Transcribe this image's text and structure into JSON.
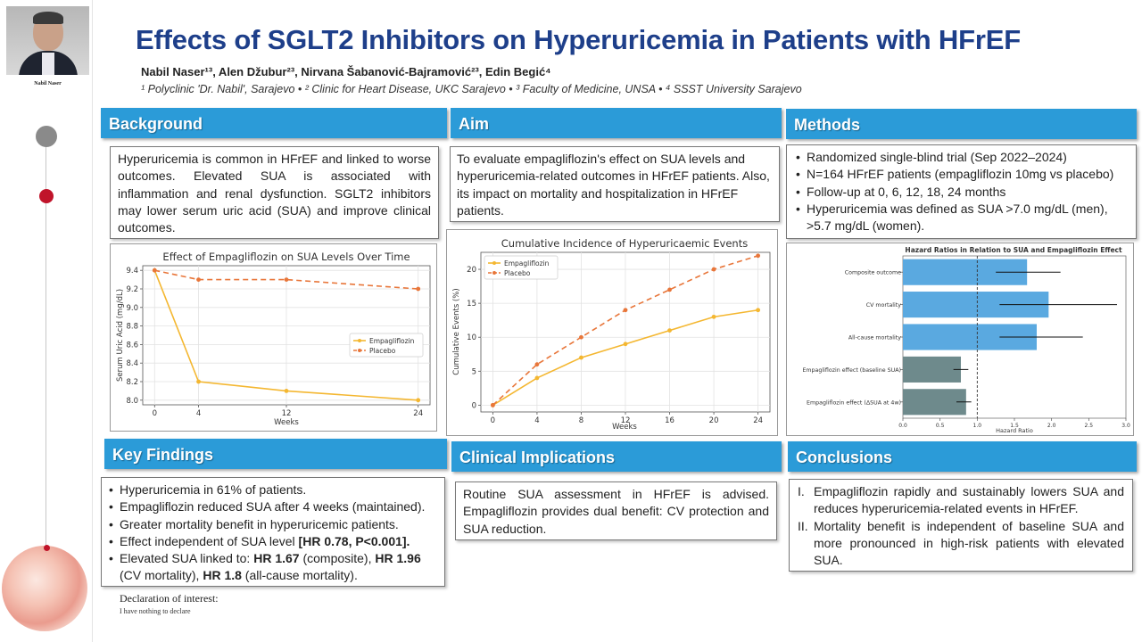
{
  "poster": {
    "title": "Effects of SGLT2 Inhibitors on Hyperuricemia in Patients with HFrEF",
    "authors": "Nabil Naser¹³, Alen Džubur²³, Nirvana Šabanović-Bajramović²³, Edin Begić⁴",
    "affiliations": "¹ Polyclinic 'Dr. Nabil', Sarajevo  •  ² Clinic for Heart Disease, UKC Sarajevo  •  ³ Faculty of Medicine, UNSA  •  ⁴ SSST University Sarajevo",
    "presenter_name": "Nabil Naser"
  },
  "background": {
    "heading": "Background",
    "text": "Hyperuricemia is common in HFrEF and linked to worse outcomes. Elevated SUA is associated with inflammation and renal dysfunction. SGLT2 inhibitors may lower serum uric acid (SUA) and improve clinical outcomes."
  },
  "aim": {
    "heading": "Aim",
    "text": "To evaluate empagliflozin's effect on SUA levels and hyperuricemia-related outcomes in HFrEF patients. Also, its impact on mortality and hospitalization in HFrEF patients."
  },
  "methods": {
    "heading": "Methods",
    "items": [
      "Randomized single-blind trial (Sep 2022–2024)",
      "N=164 HFrEF patients (empagliflozin 10mg vs placebo)",
      "Follow-up at 0, 6, 12, 18, 24 months",
      "Hyperuricemia was defined as SUA >7.0 mg/dL (men), >5.7 mg/dL (women)."
    ]
  },
  "key_findings": {
    "heading": "Key Findings",
    "items": [
      {
        "text": "Hyperuricemia in 61% of patients."
      },
      {
        "text": "Empagliflozin reduced SUA after 4 weeks (maintained)."
      },
      {
        "text": "Greater mortality benefit in hyperuricemic patients."
      },
      {
        "pre": "Effect independent of SUA level ",
        "bold": "[HR 0.78, P<0.001]."
      },
      {
        "pre": "Elevated SUA linked to: ",
        "b1": "HR 1.67",
        "t1": " (composite), ",
        "b2": "HR 1.96",
        "t2": " (CV mortality), ",
        "b3": "HR 1.8",
        "t3": " (all-cause mortality)."
      }
    ]
  },
  "clinical_implications": {
    "heading": "Clinical Implications",
    "text": "Routine SUA assessment in HFrEF is advised. Empagliflozin provides dual benefit: CV protection and SUA reduction."
  },
  "conclusions": {
    "heading": "Conclusions",
    "items": [
      {
        "num": "I.",
        "text": "Empagliflozin rapidly and sustainably lowers SUA and reduces hyperuricemia-related events in HFrEF."
      },
      {
        "num": "II.",
        "text": "Mortality benefit is independent of baseline SUA and more pronounced in high-risk patients with elevated SUA."
      }
    ]
  },
  "declaration": {
    "heading": "Declaration of interest:",
    "text": "I have nothing to declare"
  },
  "colors": {
    "header_blue": "#2b9bd8",
    "title_blue": "#1e3f8a",
    "empagliflozin": "#f4b731",
    "placebo": "#e8763a",
    "bar_blue": "#5aa9e0",
    "bar_grey": "#6e8a8c"
  },
  "chart_data": [
    {
      "type": "line",
      "title": "Effect of Empagliflozin on SUA Levels Over Time",
      "xlabel": "Weeks",
      "ylabel": "Serum Uric Acid (mg/dL)",
      "x": [
        0,
        4,
        12,
        24
      ],
      "xticks": [
        0,
        4,
        12,
        24
      ],
      "ylim": [
        7.95,
        9.45
      ],
      "yticks": [
        8.0,
        8.2,
        8.4,
        8.6,
        8.8,
        9.0,
        9.2,
        9.4
      ],
      "grid": true,
      "legend": "center-right",
      "series": [
        {
          "name": "Empagliflozin",
          "values": [
            9.4,
            8.2,
            8.1,
            8.0
          ],
          "style": "solid",
          "color": "#f4b731"
        },
        {
          "name": "Placebo",
          "values": [
            9.4,
            9.3,
            9.3,
            9.2
          ],
          "style": "dashed",
          "color": "#e8763a"
        }
      ]
    },
    {
      "type": "line",
      "title": "Cumulative Incidence of Hyperuricaemic Events",
      "xlabel": "Weeks",
      "ylabel": "Cumulative Events (%)",
      "x": [
        0,
        4,
        8,
        12,
        16,
        20,
        24
      ],
      "xticks": [
        0,
        4,
        8,
        12,
        16,
        20,
        24
      ],
      "ylim": [
        -1,
        22.5
      ],
      "yticks": [
        0,
        5,
        10,
        15,
        20
      ],
      "grid": true,
      "legend": "top-left",
      "series": [
        {
          "name": "Empagliflozin",
          "values": [
            0,
            4,
            7,
            9,
            11,
            13,
            14
          ],
          "style": "solid",
          "color": "#f4b731"
        },
        {
          "name": "Placebo",
          "values": [
            0,
            6,
            10,
            14,
            17,
            20,
            22
          ],
          "style": "dashed",
          "color": "#e8763a"
        }
      ]
    },
    {
      "type": "bar",
      "orientation": "horizontal",
      "title": "Hazard Ratios in Relation to SUA and Empagliflozin Effect",
      "xlabel": "Hazard Ratio",
      "xlim": [
        0,
        3.0
      ],
      "xticks": [
        0.0,
        0.5,
        1.0,
        1.5,
        2.0,
        2.5,
        3.0
      ],
      "reference_line": 1.0,
      "categories": [
        "Composite outcome",
        "CV mortality",
        "All-cause mortality",
        "Empagliflozin effect (baseline SUA)",
        "Empagliflozin effect (ΔSUA at 4w)"
      ],
      "values": [
        1.67,
        1.96,
        1.8,
        0.78,
        0.85
      ],
      "ci_low": [
        1.25,
        1.3,
        1.3,
        0.68,
        0.72
      ],
      "ci_high": [
        2.12,
        2.88,
        2.42,
        0.88,
        0.92
      ],
      "bar_colors": [
        "#5aa9e0",
        "#5aa9e0",
        "#5aa9e0",
        "#6e8a8c",
        "#6e8a8c"
      ]
    }
  ]
}
